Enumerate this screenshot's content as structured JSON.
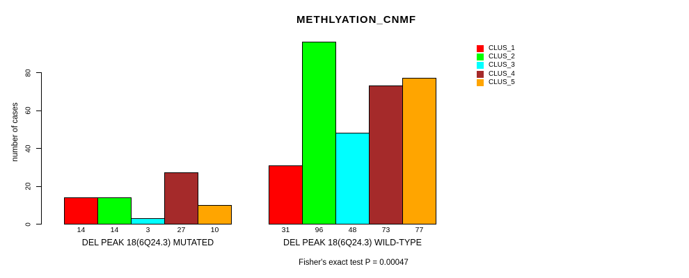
{
  "page": {
    "background": "#ffffff",
    "text_color": "#000000"
  },
  "chart_data": {
    "type": "bar",
    "title": "METHLYATION_CNMF",
    "xlabel": "",
    "ylabel": "number of cases",
    "ylim": [
      0,
      80
    ],
    "yticks": [
      0,
      20,
      40,
      60,
      80
    ],
    "grid": false,
    "legend_position": "top-right",
    "bar_border_color": "#000000",
    "categories": [
      "DEL PEAK 18(6Q24.3) MUTATED",
      "DEL PEAK 18(6Q24.3) WILD-TYPE"
    ],
    "series": [
      {
        "name": "CLUS_1",
        "color": "#ff0000",
        "values": [
          14,
          31
        ]
      },
      {
        "name": "CLUS_2",
        "color": "#00ff00",
        "values": [
          14,
          96
        ]
      },
      {
        "name": "CLUS_3",
        "color": "#00ffff",
        "values": [
          3,
          48
        ]
      },
      {
        "name": "CLUS_4",
        "color": "#a52a2a",
        "values": [
          27,
          73
        ]
      },
      {
        "name": "CLUS_5",
        "color": "#ffa500",
        "values": [
          10,
          77
        ]
      }
    ],
    "bar_value_labels_shown": true,
    "annotation": "Fisher's exact test P = 0.00047"
  }
}
